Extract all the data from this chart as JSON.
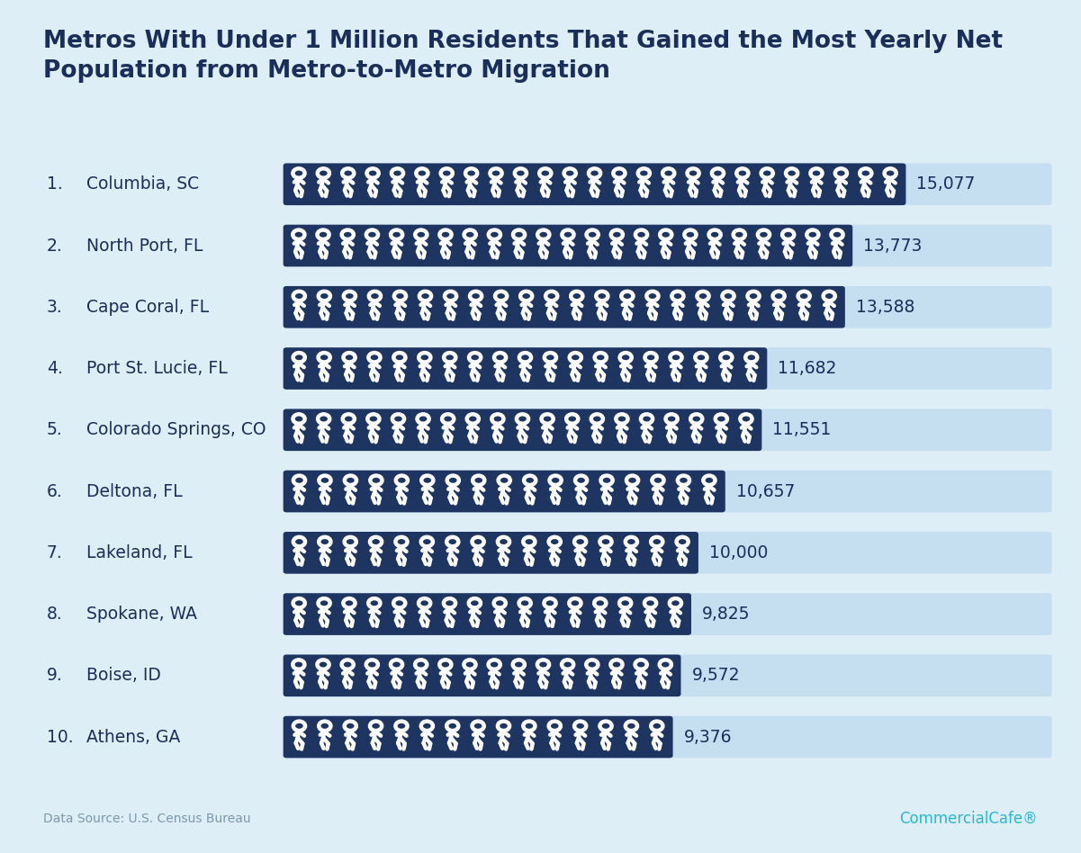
{
  "title_line1": "Metros With Under 1 Million Residents That Gained the Most Yearly Net",
  "title_line2": "Population from Metro-to-Metro Migration",
  "title_color": "#1a2e5a",
  "background_color": "#deeef7",
  "bar_bg_color": "#c5dff0",
  "bar_fill_color": "#1e3461",
  "categories": [
    "Columbia, SC",
    "North Port, FL",
    "Cape Coral, FL",
    "Port St. Lucie, FL",
    "Colorado Springs, CO",
    "Deltona, FL",
    "Lakeland, FL",
    "Spokane, WA",
    "Boise, ID",
    "Athens, GA"
  ],
  "values": [
    15077,
    13773,
    13588,
    11682,
    11551,
    10657,
    10000,
    9825,
    9572,
    9376
  ],
  "max_value": 15077,
  "label_color": "#1a2e5a",
  "value_color": "#1a2e5a",
  "datasource": "Data Source: U.S. Census Bureau",
  "brand": "CommercialCafe®",
  "brand_color": "#2ab8d0",
  "datasource_color": "#7a9aaa"
}
